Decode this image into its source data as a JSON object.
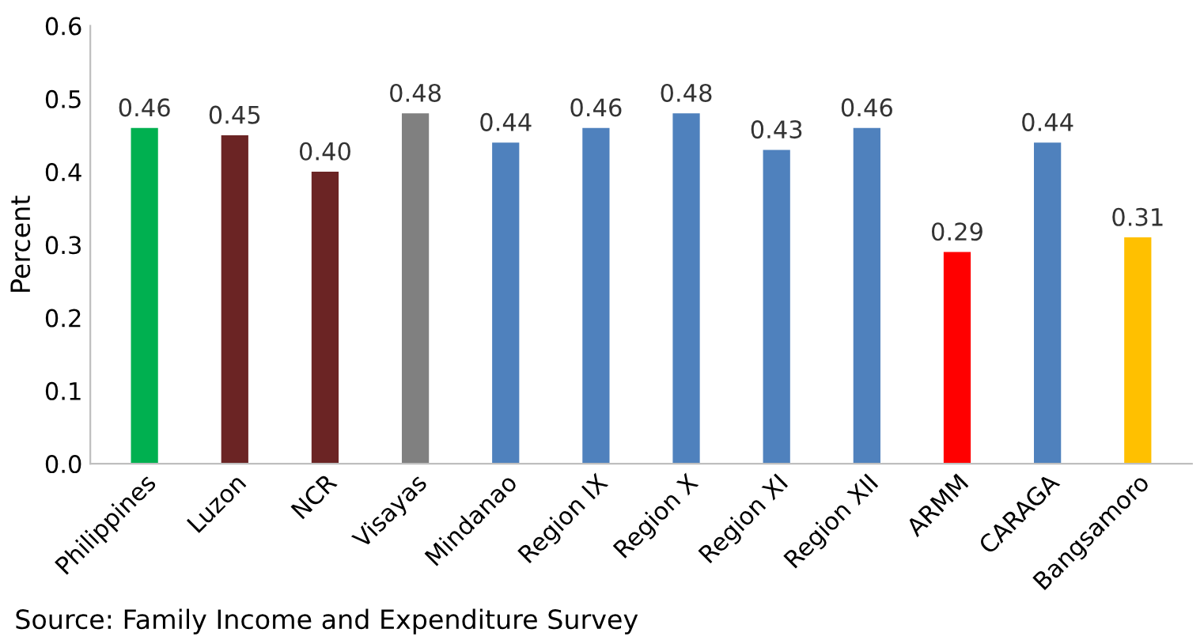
{
  "chart_data": {
    "type": "bar",
    "ylabel": "Percent",
    "categories": [
      "Philippines",
      "Luzon",
      "NCR",
      "Visayas",
      "Mindanao",
      "Region IX",
      "Region X",
      "Region XI",
      "Region XII",
      "ARMM",
      "CARAGA",
      "Bangsamoro"
    ],
    "values": [
      0.46,
      0.45,
      0.4,
      0.48,
      0.44,
      0.46,
      0.48,
      0.43,
      0.46,
      0.29,
      0.44,
      0.31
    ],
    "value_labels": [
      "0.46",
      "0.45",
      "0.40",
      "0.48",
      "0.44",
      "0.46",
      "0.48",
      "0.43",
      "0.46",
      "0.29",
      "0.44",
      "0.31"
    ],
    "colors": [
      "#00b050",
      "#6b2424",
      "#6b2424",
      "#808080",
      "#4f81bd",
      "#4f81bd",
      "#4f81bd",
      "#4f81bd",
      "#4f81bd",
      "#ff0000",
      "#4f81bd",
      "#ffc000"
    ],
    "ylim": [
      0,
      0.6
    ],
    "yticks": [
      {
        "value": 0,
        "label": "0.0"
      },
      {
        "value": 0.1,
        "label": "0.1"
      },
      {
        "value": 0.2,
        "label": "0.2"
      },
      {
        "value": 0.3,
        "label": "0.3"
      },
      {
        "value": 0.4,
        "label": "0.4"
      },
      {
        "value": 0.5,
        "label": "0.5"
      },
      {
        "value": 0.6,
        "label": "0.6"
      }
    ],
    "grid": false,
    "annotations": [
      "Source: Family Income and Expenditure Survey"
    ]
  }
}
